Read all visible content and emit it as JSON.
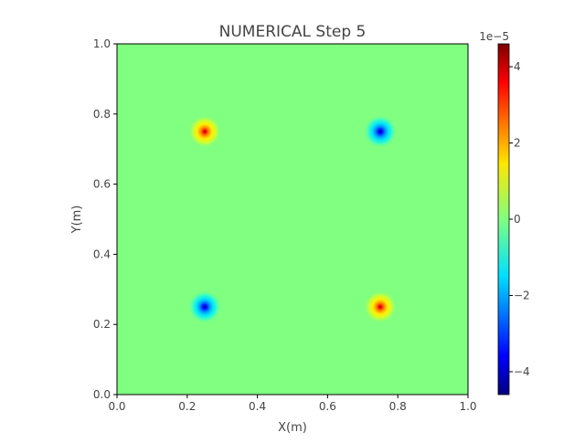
{
  "chart_data": {
    "type": "heatmap",
    "title": "NUMERICAL Step 5",
    "xlabel": "X(m)",
    "ylabel": "Y(m)",
    "xlim": [
      0.0,
      1.0
    ],
    "ylim": [
      0.0,
      1.0
    ],
    "xticks": [
      "0.0",
      "0.2",
      "0.4",
      "0.6",
      "0.8",
      "1.0"
    ],
    "yticks": [
      "0.0",
      "0.2",
      "0.4",
      "0.6",
      "0.8",
      "1.0"
    ],
    "background_value": 0,
    "colormap": "jet",
    "colorbar": {
      "range": [
        -4.6e-05,
        4.6e-05
      ],
      "offset_label": "1e−5",
      "ticks": [
        {
          "value": 4,
          "label": "4"
        },
        {
          "value": 2,
          "label": "2"
        },
        {
          "value": 0,
          "label": "0"
        },
        {
          "value": -2,
          "label": "−2"
        },
        {
          "value": -4,
          "label": "−4"
        }
      ]
    },
    "peaks": [
      {
        "x": 0.25,
        "y": 0.75,
        "sign": "positive"
      },
      {
        "x": 0.75,
        "y": 0.75,
        "sign": "negative"
      },
      {
        "x": 0.25,
        "y": 0.25,
        "sign": "negative"
      },
      {
        "x": 0.75,
        "y": 0.25,
        "sign": "positive"
      }
    ]
  }
}
